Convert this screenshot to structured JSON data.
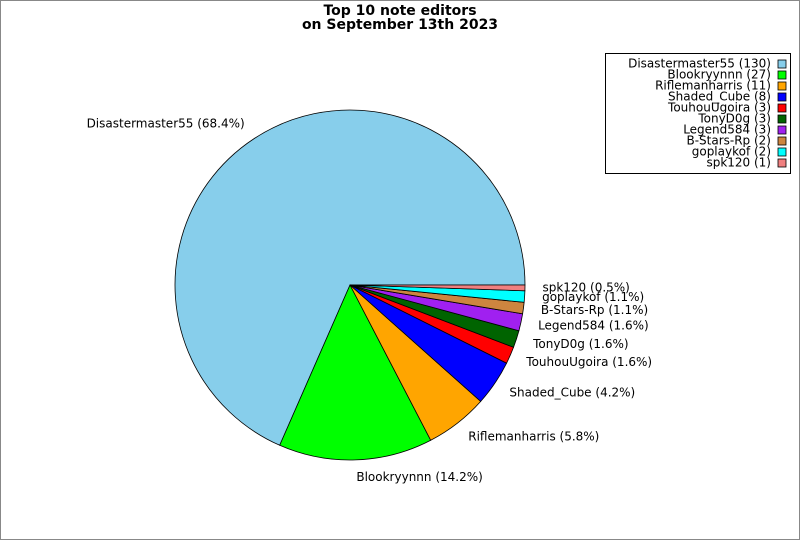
{
  "chart_data": {
    "type": "pie",
    "title": [
      "Top 10 note editors",
      "on September 13th 2023"
    ],
    "categories": [
      "Disastermaster55",
      "Blookryynnn",
      "Riflemanharris",
      "Shaded_Cube",
      "TouhouUgoira",
      "TonyD0g",
      "Legend584",
      "B-Stars-Rp",
      "goplaykof",
      "spk120"
    ],
    "values": [
      130,
      27,
      11,
      8,
      3,
      3,
      3,
      2,
      2,
      1
    ],
    "value_labels": [
      "Disastermaster55 (68.4%)",
      "Blookryynnn (14.2%)",
      "Riflemanharris (5.8%)",
      "Shaded_Cube (4.2%)",
      "TouhouUgoira (1.6%)",
      "TonyD0g (1.6%)",
      "Legend584 (1.6%)",
      "B-Stars-Rp (1.1%)",
      "goplaykof (1.1%)",
      "spk120 (0.5%)"
    ],
    "legend_labels": [
      "Disastermaster55 (130)",
      "Blookryynnn (27)",
      "Riflemanharris (11)",
      "Shaded_Cube (8)",
      "TouhouUgoira (3)",
      "TonyD0g (3)",
      "Legend584 (3)",
      "B-Stars-Rp (2)",
      "goplaykof (2)",
      "spk120 (1)"
    ],
    "colors": [
      "#87ceeb",
      "#00ff00",
      "#ffa500",
      "#0000ff",
      "#ff0000",
      "#006400",
      "#a020f0",
      "#cd853f",
      "#00ffff",
      "#f08080"
    ],
    "legend": "upper right"
  }
}
